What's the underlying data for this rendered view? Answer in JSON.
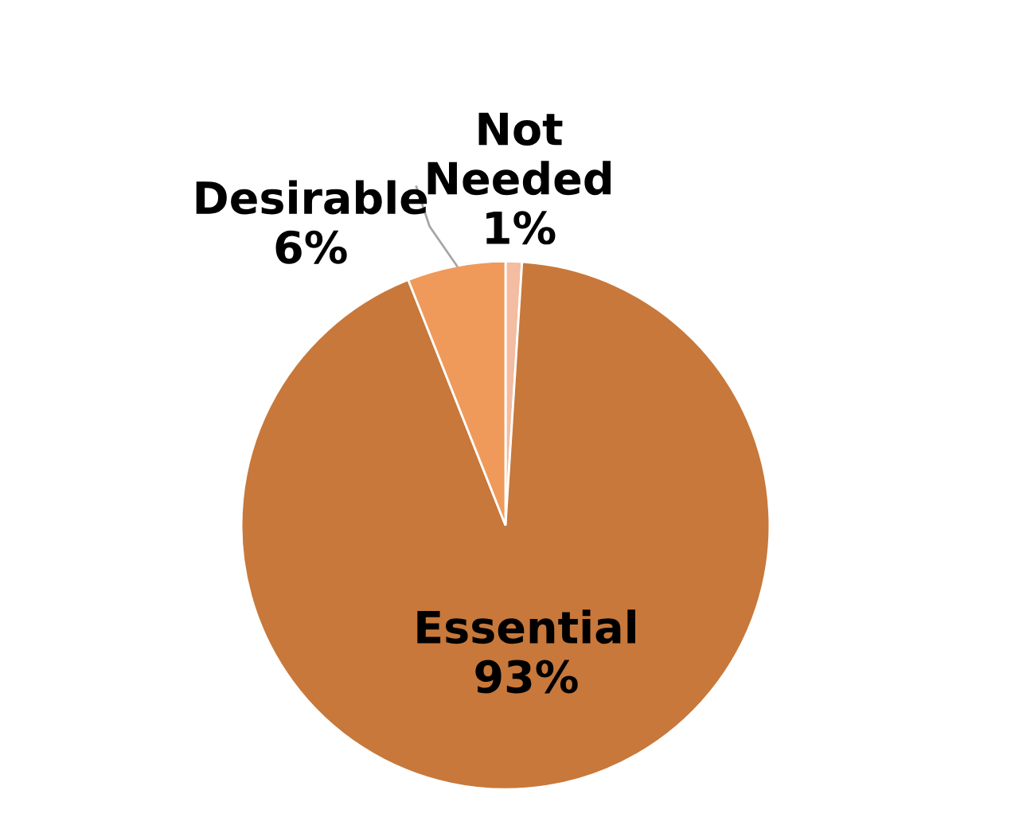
{
  "chart_data": {
    "type": "pie",
    "categories": [
      "Not Needed",
      "Essential",
      "Desirable"
    ],
    "values": [
      1,
      93,
      6
    ],
    "colors": [
      "#f4bca0",
      "#c8783a",
      "#ef9a5a"
    ],
    "value_labels": [
      "1%",
      "93%",
      "6%"
    ]
  }
}
